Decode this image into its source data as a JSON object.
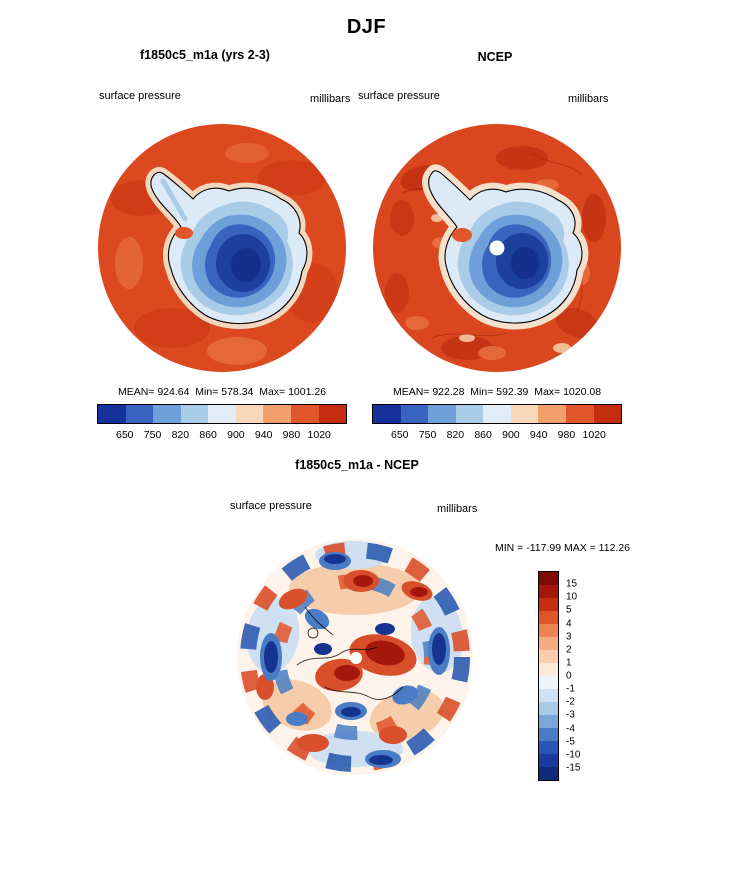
{
  "header": {
    "title": "DJF"
  },
  "panels": [
    {
      "title": "f1850c5_m1a (yrs 2-3)",
      "field": "surface pressure",
      "units": "millibars",
      "stats_line": "MEAN= 924.64  Min= 578.34  Max= 1001.26",
      "ticks": [
        "650",
        "750",
        "820",
        "860",
        "900",
        "940",
        "980",
        "1020"
      ]
    },
    {
      "title": "NCEP",
      "field": "surface pressure",
      "units": "millibars",
      "stats_line": "MEAN= 922.28  Min= 592.39  Max= 1020.08",
      "ticks": [
        "650",
        "750",
        "820",
        "860",
        "900",
        "940",
        "980",
        "1020"
      ]
    }
  ],
  "diff": {
    "title": "f1850c5_m1a - NCEP",
    "field": "surface pressure",
    "units": "millibars",
    "minmax_line": "MIN = -117.99 MAX = 112.26",
    "labels": [
      "15",
      "10",
      "5",
      "4",
      "3",
      "2",
      "1",
      "0",
      "-1",
      "-2",
      "-3",
      "-4",
      "-5",
      "-10",
      "-15"
    ]
  },
  "palettes": {
    "pressure": [
      "#16309c",
      "#3a63c0",
      "#6f9fd8",
      "#a8cbe8",
      "#e2ecf6",
      "#f8d8ba",
      "#f3a06d",
      "#e0552a",
      "#c42d10"
    ],
    "difference": [
      "#7f0a06",
      "#a5160c",
      "#c62e10",
      "#e0552a",
      "#ef8253",
      "#f6ab80",
      "#fbcfae",
      "#fdead9",
      "#eef4fb",
      "#cfe2f3",
      "#a8cbe8",
      "#7aa7d8",
      "#4a7cc6",
      "#2a55b8",
      "#1a3a9e",
      "#122a7a"
    ]
  },
  "chart_data": [
    {
      "type": "heatmap",
      "subtype": "filled-contour-polar-map",
      "projection": "south-polar-stereographic",
      "season": "DJF",
      "title": "f1850c5_m1a (yrs 2-3)",
      "variable": "surface pressure",
      "units": "millibars",
      "stats": {
        "mean": 924.64,
        "min": 578.34,
        "max": 1001.26
      },
      "colorbar_ticks": [
        650,
        750,
        820,
        860,
        900,
        940,
        980,
        1020
      ],
      "legend_position": "bottom"
    },
    {
      "type": "heatmap",
      "subtype": "filled-contour-polar-map",
      "projection": "south-polar-stereographic",
      "season": "DJF",
      "title": "NCEP",
      "variable": "surface pressure",
      "units": "millibars",
      "stats": {
        "mean": 922.28,
        "min": 592.39,
        "max": 1020.08
      },
      "colorbar_ticks": [
        650,
        750,
        820,
        860,
        900,
        940,
        980,
        1020
      ],
      "legend_position": "bottom"
    },
    {
      "type": "heatmap",
      "subtype": "filled-contour-polar-map-difference",
      "projection": "south-polar-stereographic",
      "season": "DJF",
      "title": "f1850c5_m1a - NCEP",
      "variable": "surface pressure",
      "units": "millibars",
      "stats": {
        "min": -117.99,
        "max": 112.26
      },
      "colorbar_levels": [
        15,
        10,
        5,
        4,
        3,
        2,
        1,
        0,
        -1,
        -2,
        -3,
        -4,
        -5,
        -10,
        -15
      ],
      "legend_position": "right"
    }
  ]
}
